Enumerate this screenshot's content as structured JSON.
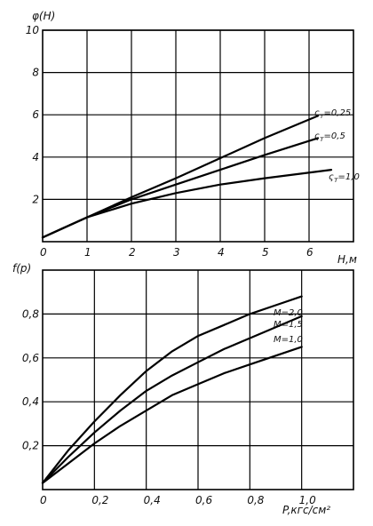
{
  "chart_data": [
    {
      "type": "line",
      "title": "",
      "ylabel": "φ(H)",
      "xlabel": "H,м",
      "xlim": [
        0,
        7
      ],
      "ylim": [
        0,
        10
      ],
      "xticks": [
        0,
        1,
        2,
        3,
        4,
        5,
        6
      ],
      "yticks": [
        2,
        4,
        6,
        8,
        10
      ],
      "grid": true,
      "series": [
        {
          "name": "ς_т=0,25",
          "x": [
            0,
            1,
            2,
            3,
            4,
            5,
            6.2
          ],
          "y": [
            0.2,
            1.15,
            2.1,
            3.0,
            3.95,
            4.9,
            5.95
          ]
        },
        {
          "name": "ς_т=0,5",
          "x": [
            0,
            1,
            2,
            3,
            4,
            5,
            6.2
          ],
          "y": [
            0.2,
            1.15,
            2.0,
            2.7,
            3.4,
            4.1,
            4.9
          ]
        },
        {
          "name": "ς_т=1,0",
          "x": [
            0,
            1,
            2,
            3,
            4,
            5,
            6.5
          ],
          "y": [
            0.2,
            1.15,
            1.8,
            2.3,
            2.7,
            3.0,
            3.4
          ]
        }
      ],
      "labels": [
        {
          "text": "ς",
          "sub": "т",
          "rest": "=0,25"
        },
        {
          "text": "ς",
          "sub": "т",
          "rest": "=0,5"
        },
        {
          "text": "ς",
          "sub": "т",
          "rest": "=1,0"
        }
      ]
    },
    {
      "type": "line",
      "title": "",
      "ylabel": "f(p)",
      "xlabel": "P,кгс/см²",
      "xlim": [
        0,
        1.2
      ],
      "ylim": [
        0,
        1.0
      ],
      "xticks": [
        "0",
        "0,2",
        "0,4",
        "0,6",
        "0,8",
        "1,0"
      ],
      "xtick_values": [
        0,
        0.2,
        0.4,
        0.6,
        0.8,
        1.0
      ],
      "yticks": [
        "0,2",
        "0,4",
        "0,6",
        "0,8"
      ],
      "ytick_values": [
        0.2,
        0.4,
        0.6,
        0.8
      ],
      "grid": true,
      "series": [
        {
          "name": "M=2,0",
          "x": [
            0,
            0.1,
            0.2,
            0.3,
            0.4,
            0.5,
            0.6,
            0.7,
            0.8,
            0.9,
            1.0
          ],
          "y": [
            0.03,
            0.18,
            0.31,
            0.43,
            0.54,
            0.63,
            0.7,
            0.75,
            0.8,
            0.84,
            0.88
          ]
        },
        {
          "name": "M=1,5",
          "x": [
            0,
            0.1,
            0.2,
            0.3,
            0.4,
            0.5,
            0.6,
            0.7,
            0.8,
            0.9,
            1.0
          ],
          "y": [
            0.03,
            0.15,
            0.26,
            0.36,
            0.45,
            0.52,
            0.58,
            0.64,
            0.69,
            0.74,
            0.79
          ]
        },
        {
          "name": "M=1,0",
          "x": [
            0,
            0.1,
            0.2,
            0.3,
            0.4,
            0.5,
            0.6,
            0.7,
            0.8,
            0.9,
            1.0
          ],
          "y": [
            0.03,
            0.12,
            0.21,
            0.29,
            0.36,
            0.43,
            0.48,
            0.53,
            0.57,
            0.61,
            0.65
          ]
        }
      ],
      "labels": [
        {
          "text": "M=2,0"
        },
        {
          "text": "M=1,5"
        },
        {
          "text": "M=1,0"
        }
      ]
    }
  ]
}
